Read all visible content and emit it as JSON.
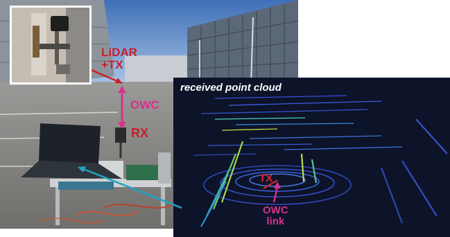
{
  "labels": {
    "lidar_tx_line1": "LiDAR",
    "lidar_tx_line2": "+TX",
    "owc_left": "OWC",
    "rx": "RX",
    "cloud_title": "received point cloud",
    "tx_cloud": "TX",
    "owc_link_line1": "OWC",
    "owc_link_line2": "link"
  },
  "colors": {
    "label_red": "#c8202a",
    "label_pink": "#d6318a",
    "arrow_cyan": "#1fa3c4",
    "cloud_bg": "#0d1328"
  }
}
